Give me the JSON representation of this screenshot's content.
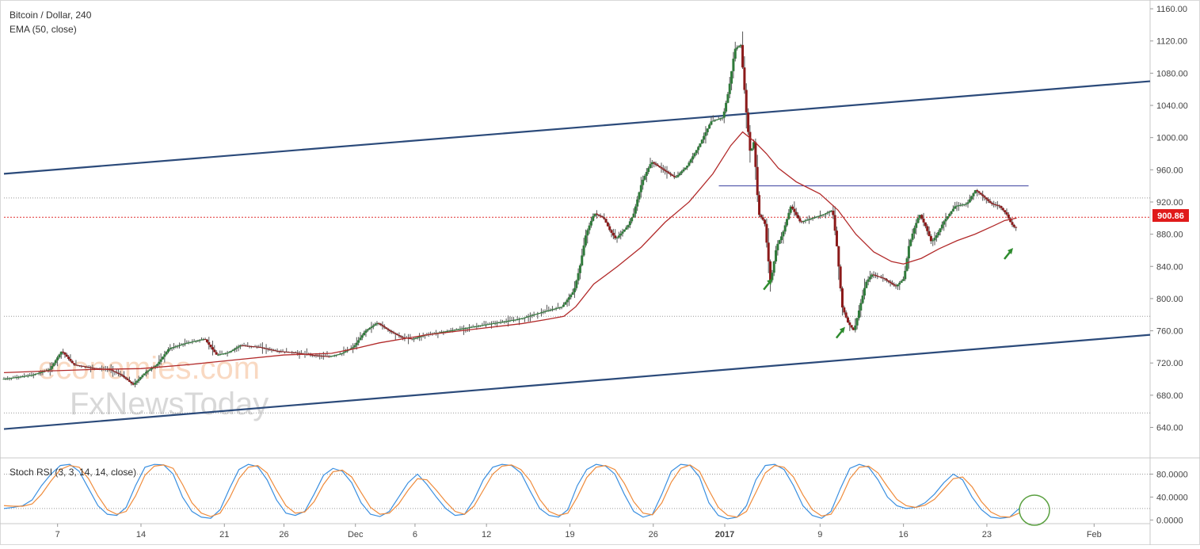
{
  "chart_data": [
    {
      "type": "candlestick",
      "title": "Bitcoin / Dollar, 240",
      "indicator_label": "EMA (50, close)",
      "y_axis": {
        "ticks": [
          "1160.00",
          "1120.00",
          "1080.00",
          "1040.00",
          "1000.00",
          "960.00",
          "920.00",
          "880.00",
          "840.00",
          "800.00",
          "760.00",
          "720.00",
          "680.00",
          "640.00"
        ],
        "ylim": [
          610,
          1165
        ]
      },
      "x_axis": {
        "ticks": [
          {
            "label": "7",
            "x": 7
          },
          {
            "label": "14",
            "x": 14
          },
          {
            "label": "21",
            "x": 21
          },
          {
            "label": "26",
            "x": 26
          },
          {
            "label": "Dec",
            "x": 32
          },
          {
            "label": "6",
            "x": 37
          },
          {
            "label": "12",
            "x": 43
          },
          {
            "label": "19",
            "x": 50
          },
          {
            "label": "26",
            "x": 57
          },
          {
            "label": "2017",
            "x": 63
          },
          {
            "label": "9",
            "x": 71
          },
          {
            "label": "16",
            "x": 78
          },
          {
            "label": "23",
            "x": 85
          },
          {
            "label": "Feb",
            "x": 94
          }
        ],
        "xlim": [
          2.5,
          98.7
        ]
      },
      "current_price": "900.86",
      "channel_upper": [
        [
          2.5,
          955
        ],
        [
          98.7,
          1070
        ]
      ],
      "channel_lower": [
        [
          2.5,
          638
        ],
        [
          98.7,
          755
        ]
      ],
      "horizontal_levels": [
        925,
        901,
        778,
        658
      ],
      "resistance_line": {
        "x": [
          62.5,
          88.5
        ],
        "y": 940
      },
      "price_path": [
        [
          2.5,
          700
        ],
        [
          5,
          705
        ],
        [
          6.5,
          712
        ],
        [
          7.5,
          735
        ],
        [
          8.5,
          718
        ],
        [
          10,
          714
        ],
        [
          11.5,
          712
        ],
        [
          12.5,
          705
        ],
        [
          13.5,
          693
        ],
        [
          14.5,
          708
        ],
        [
          15.5,
          718
        ],
        [
          16.5,
          738
        ],
        [
          18,
          745
        ],
        [
          19.5,
          750
        ],
        [
          20.5,
          730
        ],
        [
          21.5,
          733
        ],
        [
          22.5,
          742
        ],
        [
          24,
          740
        ],
        [
          25.5,
          735
        ],
        [
          27,
          733
        ],
        [
          28.5,
          730
        ],
        [
          30,
          728
        ],
        [
          31,
          732
        ],
        [
          32,
          740
        ],
        [
          33,
          760
        ],
        [
          34,
          770
        ],
        [
          35,
          760
        ],
        [
          36,
          752
        ],
        [
          37,
          750
        ],
        [
          38,
          755
        ],
        [
          40,
          760
        ],
        [
          42,
          765
        ],
        [
          44,
          770
        ],
        [
          46,
          775
        ],
        [
          48,
          784
        ],
        [
          49.5,
          790
        ],
        [
          50.5,
          810
        ],
        [
          51,
          840
        ],
        [
          51.5,
          880
        ],
        [
          52.2,
          906
        ],
        [
          53,
          900
        ],
        [
          53.5,
          885
        ],
        [
          54,
          874
        ],
        [
          54.5,
          882
        ],
        [
          55,
          890
        ],
        [
          55.5,
          905
        ],
        [
          56.2,
          945
        ],
        [
          57,
          970
        ],
        [
          58,
          960
        ],
        [
          59,
          950
        ],
        [
          60,
          965
        ],
        [
          61,
          990
        ],
        [
          62,
          1020
        ],
        [
          63,
          1025
        ],
        [
          63.5,
          1060
        ],
        [
          64,
          1110
        ],
        [
          64.5,
          1115
        ],
        [
          65,
          1025
        ],
        [
          65.3,
          980
        ],
        [
          65.6,
          995
        ],
        [
          66,
          905
        ],
        [
          66.5,
          895
        ],
        [
          67,
          820
        ],
        [
          67.5,
          865
        ],
        [
          68,
          880
        ],
        [
          68.7,
          915
        ],
        [
          69.5,
          895
        ],
        [
          70.5,
          900
        ],
        [
          71.5,
          905
        ],
        [
          72.2,
          910
        ],
        [
          72.6,
          860
        ],
        [
          73,
          790
        ],
        [
          73.5,
          770
        ],
        [
          74,
          760
        ],
        [
          74.5,
          790
        ],
        [
          75,
          820
        ],
        [
          75.5,
          830
        ],
        [
          76.5,
          825
        ],
        [
          77.5,
          815
        ],
        [
          78.2,
          825
        ],
        [
          78.6,
          865
        ],
        [
          79,
          885
        ],
        [
          79.5,
          905
        ],
        [
          80,
          890
        ],
        [
          80.5,
          870
        ],
        [
          81,
          880
        ],
        [
          81.5,
          895
        ],
        [
          82,
          905
        ],
        [
          82.5,
          915
        ],
        [
          83.5,
          918
        ],
        [
          84.2,
          935
        ],
        [
          85,
          925
        ],
        [
          85.5,
          918
        ],
        [
          86.2,
          915
        ],
        [
          86.8,
          905
        ],
        [
          87.2,
          893
        ],
        [
          87.5,
          888
        ]
      ],
      "ema_path": [
        [
          2.5,
          708
        ],
        [
          6,
          710
        ],
        [
          10,
          712
        ],
        [
          14,
          713
        ],
        [
          18,
          718
        ],
        [
          22,
          724
        ],
        [
          26,
          730
        ],
        [
          30,
          732
        ],
        [
          32,
          738
        ],
        [
          34,
          745
        ],
        [
          38,
          755
        ],
        [
          42,
          762
        ],
        [
          46,
          769
        ],
        [
          48,
          774
        ],
        [
          49.5,
          778
        ],
        [
          50.5,
          790
        ],
        [
          52,
          818
        ],
        [
          54,
          840
        ],
        [
          56,
          864
        ],
        [
          58,
          895
        ],
        [
          60,
          920
        ],
        [
          62,
          955
        ],
        [
          63.5,
          990
        ],
        [
          64.5,
          1007
        ],
        [
          65.5,
          995
        ],
        [
          66.5,
          980
        ],
        [
          67.5,
          962
        ],
        [
          69,
          945
        ],
        [
          71,
          930
        ],
        [
          72.5,
          910
        ],
        [
          74,
          880
        ],
        [
          75.5,
          858
        ],
        [
          77,
          846
        ],
        [
          78,
          843
        ],
        [
          79.5,
          850
        ],
        [
          81,
          862
        ],
        [
          82.5,
          872
        ],
        [
          84,
          880
        ],
        [
          85.5,
          890
        ],
        [
          86.5,
          897
        ],
        [
          87.5,
          900
        ]
      ],
      "arrows": [
        [
          66.6,
          818
        ],
        [
          72.7,
          758
        ],
        [
          86.8,
          856
        ]
      ],
      "watermark": [
        "economies.com",
        "FxNewsToday"
      ]
    },
    {
      "type": "line",
      "title": "Stoch RSI (3, 3, 14, 14, close)",
      "y_axis": {
        "ticks": [
          "80.0000",
          "40.0000",
          "0.0000"
        ],
        "ylim": [
          -5,
          100
        ]
      },
      "levels": [
        80,
        20
      ],
      "series": [
        {
          "values": [
            20,
            22,
            25,
            35,
            60,
            80,
            95,
            97,
            85,
            55,
            25,
            10,
            8,
            22,
            60,
            92,
            97,
            96,
            80,
            40,
            15,
            5,
            3,
            18,
            55,
            88,
            97,
            93,
            70,
            35,
            12,
            8,
            15,
            45,
            78,
            90,
            85,
            65,
            30,
            10,
            6,
            15,
            40,
            65,
            80,
            62,
            40,
            20,
            8,
            10,
            35,
            70,
            92,
            97,
            95,
            82,
            50,
            20,
            8,
            5,
            18,
            60,
            88,
            97,
            94,
            80,
            45,
            15,
            5,
            10,
            45,
            85,
            97,
            95,
            75,
            30,
            8,
            2,
            5,
            25,
            70,
            95,
            97,
            88,
            60,
            25,
            8,
            3,
            15,
            55,
            90,
            97,
            92,
            70,
            40,
            25,
            20,
            22,
            30,
            45,
            65,
            80,
            70,
            40,
            18,
            5,
            3,
            5,
            20
          ]
        },
        {
          "values": [
            25,
            24,
            24,
            28,
            45,
            68,
            88,
            95,
            92,
            72,
            42,
            18,
            10,
            15,
            42,
            78,
            94,
            96,
            90,
            62,
            30,
            12,
            6,
            12,
            38,
            72,
            92,
            95,
            82,
            52,
            25,
            12,
            14,
            32,
            62,
            84,
            87,
            75,
            48,
            22,
            10,
            12,
            28,
            52,
            72,
            70,
            52,
            32,
            15,
            10,
            24,
            52,
            80,
            94,
            96,
            88,
            68,
            36,
            15,
            8,
            12,
            40,
            74,
            92,
            95,
            88,
            64,
            32,
            12,
            9,
            30,
            66,
            90,
            96,
            85,
            52,
            22,
            8,
            5,
            15,
            48,
            82,
            95,
            92,
            75,
            44,
            18,
            7,
            10,
            36,
            72,
            92,
            94,
            82,
            58,
            36,
            25,
            22,
            26,
            36,
            54,
            72,
            75,
            58,
            32,
            14,
            6,
            5,
            12
          ]
        }
      ]
    }
  ]
}
